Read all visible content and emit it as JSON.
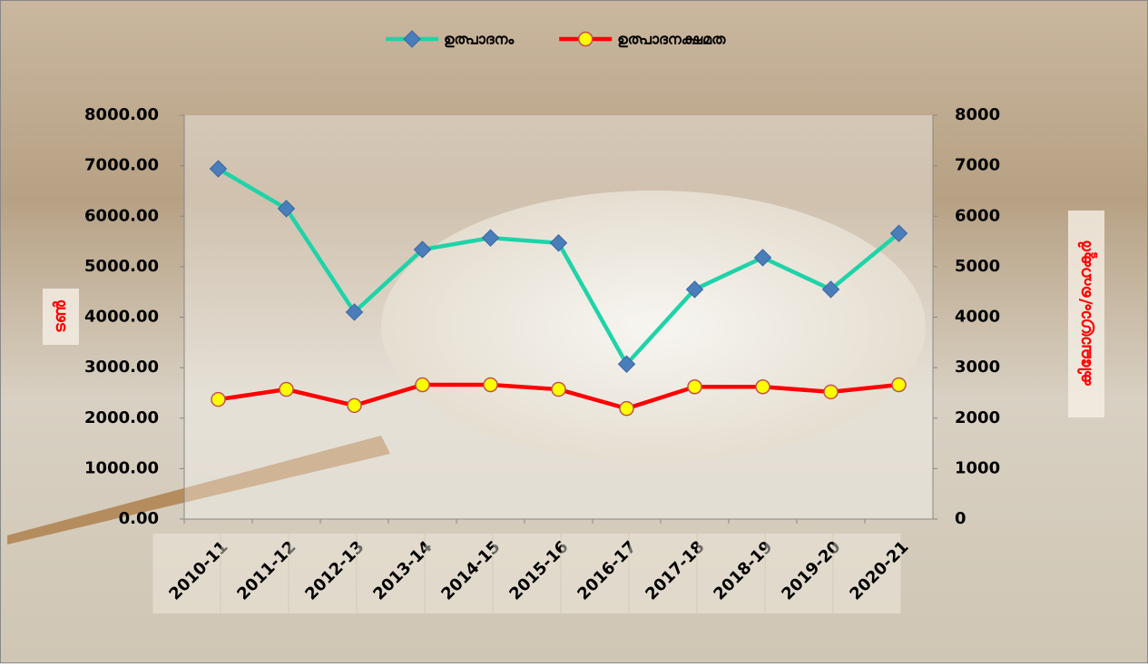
{
  "chart_data": {
    "type": "line",
    "categories": [
      "2010-11",
      "2011-12",
      "2012-13",
      "2013-14",
      "2014-15",
      "2015-16",
      "2016-17",
      "2017-18",
      "2018-19",
      "2019-20",
      "2020-21"
    ],
    "series": [
      {
        "name": "ഉത്പാദനം",
        "color": "#1fd3a8",
        "marker": "diamond",
        "marker_color": "#4a7ebb",
        "values": [
          6940,
          6150,
          4100,
          5340,
          5570,
          5470,
          3070,
          4550,
          5180,
          4550,
          5660
        ]
      },
      {
        "name": "ഉത്പാദനക്ഷമത",
        "color": "#ff0000",
        "marker": "circle",
        "marker_color": "#ffff00",
        "axis": "y2",
        "values": [
          2370,
          2570,
          2250,
          2660,
          2660,
          2570,
          2190,
          2620,
          2620,
          2520,
          2660
        ]
      }
    ],
    "ylabel": "ടൺ",
    "y2label": "കിലോഗ്രാം/ഹെക്ടർ",
    "ylim": [
      0,
      8000
    ],
    "yticks": [
      {
        "value": 0,
        "label": "0.00"
      },
      {
        "value": 1000,
        "label": "1000.00"
      },
      {
        "value": 2000,
        "label": "2000.00"
      },
      {
        "value": 3000,
        "label": "3000.00"
      },
      {
        "value": 4000,
        "label": "4000.00"
      },
      {
        "value": 5000,
        "label": "5000.00"
      },
      {
        "value": 6000,
        "label": "6000.00"
      },
      {
        "value": 7000,
        "label": "7000.00"
      },
      {
        "value": 8000,
        "label": "8000.00"
      }
    ],
    "y2lim": [
      0,
      8000
    ],
    "y2ticks": [
      0,
      1000,
      2000,
      3000,
      4000,
      5000,
      6000,
      7000,
      8000
    ],
    "legend": "top",
    "grid": false
  }
}
